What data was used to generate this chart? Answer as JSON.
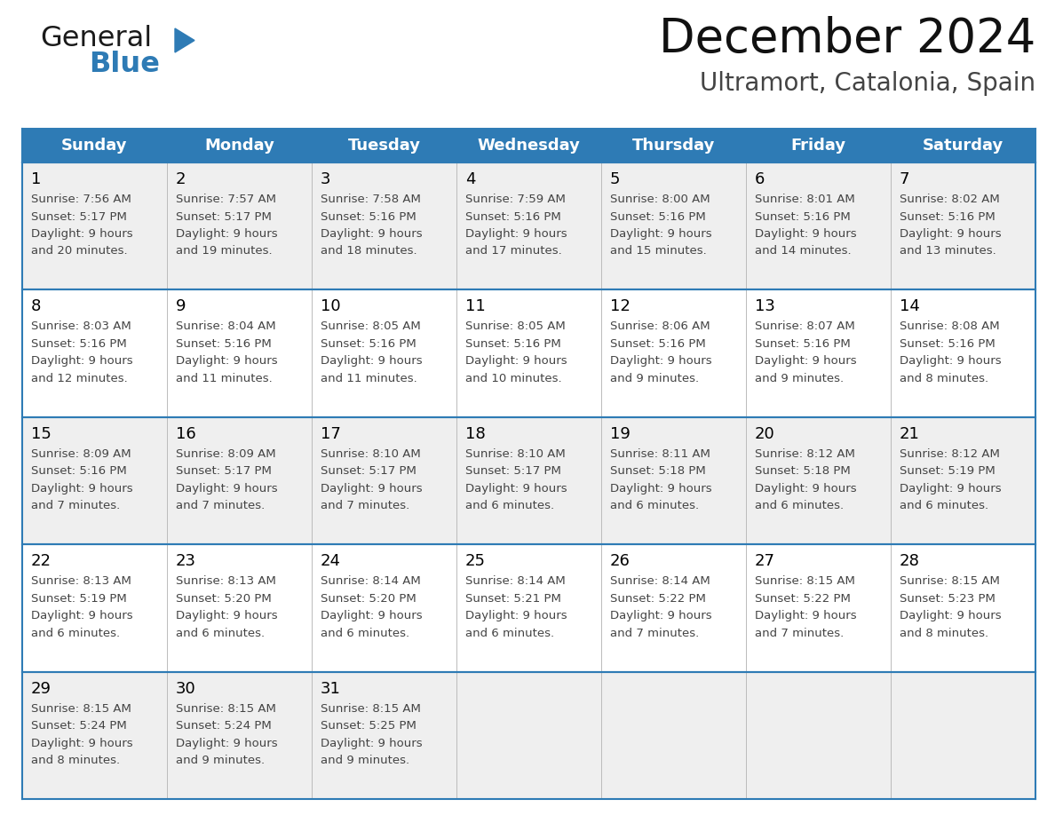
{
  "title": "December 2024",
  "subtitle": "Ultramort, Catalonia, Spain",
  "days_of_week": [
    "Sunday",
    "Monday",
    "Tuesday",
    "Wednesday",
    "Thursday",
    "Friday",
    "Saturday"
  ],
  "header_bg": "#2E7BB5",
  "header_text": "#FFFFFF",
  "row_bg_odd": "#EFEFEF",
  "row_bg_even": "#FFFFFF",
  "cell_border": "#2E7BB5",
  "day_number_color": "#000000",
  "cell_text_color": "#444444",
  "calendar_data": [
    [
      {
        "day": 1,
        "sunrise": "7:56 AM",
        "sunset": "5:17 PM",
        "daylight": "9 hours and 20 minutes."
      },
      {
        "day": 2,
        "sunrise": "7:57 AM",
        "sunset": "5:17 PM",
        "daylight": "9 hours and 19 minutes."
      },
      {
        "day": 3,
        "sunrise": "7:58 AM",
        "sunset": "5:16 PM",
        "daylight": "9 hours and 18 minutes."
      },
      {
        "day": 4,
        "sunrise": "7:59 AM",
        "sunset": "5:16 PM",
        "daylight": "9 hours and 17 minutes."
      },
      {
        "day": 5,
        "sunrise": "8:00 AM",
        "sunset": "5:16 PM",
        "daylight": "9 hours and 15 minutes."
      },
      {
        "day": 6,
        "sunrise": "8:01 AM",
        "sunset": "5:16 PM",
        "daylight": "9 hours and 14 minutes."
      },
      {
        "day": 7,
        "sunrise": "8:02 AM",
        "sunset": "5:16 PM",
        "daylight": "9 hours and 13 minutes."
      }
    ],
    [
      {
        "day": 8,
        "sunrise": "8:03 AM",
        "sunset": "5:16 PM",
        "daylight": "9 hours and 12 minutes."
      },
      {
        "day": 9,
        "sunrise": "8:04 AM",
        "sunset": "5:16 PM",
        "daylight": "9 hours and 11 minutes."
      },
      {
        "day": 10,
        "sunrise": "8:05 AM",
        "sunset": "5:16 PM",
        "daylight": "9 hours and 11 minutes."
      },
      {
        "day": 11,
        "sunrise": "8:05 AM",
        "sunset": "5:16 PM",
        "daylight": "9 hours and 10 minutes."
      },
      {
        "day": 12,
        "sunrise": "8:06 AM",
        "sunset": "5:16 PM",
        "daylight": "9 hours and 9 minutes."
      },
      {
        "day": 13,
        "sunrise": "8:07 AM",
        "sunset": "5:16 PM",
        "daylight": "9 hours and 9 minutes."
      },
      {
        "day": 14,
        "sunrise": "8:08 AM",
        "sunset": "5:16 PM",
        "daylight": "9 hours and 8 minutes."
      }
    ],
    [
      {
        "day": 15,
        "sunrise": "8:09 AM",
        "sunset": "5:16 PM",
        "daylight": "9 hours and 7 minutes."
      },
      {
        "day": 16,
        "sunrise": "8:09 AM",
        "sunset": "5:17 PM",
        "daylight": "9 hours and 7 minutes."
      },
      {
        "day": 17,
        "sunrise": "8:10 AM",
        "sunset": "5:17 PM",
        "daylight": "9 hours and 7 minutes."
      },
      {
        "day": 18,
        "sunrise": "8:10 AM",
        "sunset": "5:17 PM",
        "daylight": "9 hours and 6 minutes."
      },
      {
        "day": 19,
        "sunrise": "8:11 AM",
        "sunset": "5:18 PM",
        "daylight": "9 hours and 6 minutes."
      },
      {
        "day": 20,
        "sunrise": "8:12 AM",
        "sunset": "5:18 PM",
        "daylight": "9 hours and 6 minutes."
      },
      {
        "day": 21,
        "sunrise": "8:12 AM",
        "sunset": "5:19 PM",
        "daylight": "9 hours and 6 minutes."
      }
    ],
    [
      {
        "day": 22,
        "sunrise": "8:13 AM",
        "sunset": "5:19 PM",
        "daylight": "9 hours and 6 minutes."
      },
      {
        "day": 23,
        "sunrise": "8:13 AM",
        "sunset": "5:20 PM",
        "daylight": "9 hours and 6 minutes."
      },
      {
        "day": 24,
        "sunrise": "8:14 AM",
        "sunset": "5:20 PM",
        "daylight": "9 hours and 6 minutes."
      },
      {
        "day": 25,
        "sunrise": "8:14 AM",
        "sunset": "5:21 PM",
        "daylight": "9 hours and 6 minutes."
      },
      {
        "day": 26,
        "sunrise": "8:14 AM",
        "sunset": "5:22 PM",
        "daylight": "9 hours and 7 minutes."
      },
      {
        "day": 27,
        "sunrise": "8:15 AM",
        "sunset": "5:22 PM",
        "daylight": "9 hours and 7 minutes."
      },
      {
        "day": 28,
        "sunrise": "8:15 AM",
        "sunset": "5:23 PM",
        "daylight": "9 hours and 8 minutes."
      }
    ],
    [
      {
        "day": 29,
        "sunrise": "8:15 AM",
        "sunset": "5:24 PM",
        "daylight": "9 hours and 8 minutes."
      },
      {
        "day": 30,
        "sunrise": "8:15 AM",
        "sunset": "5:24 PM",
        "daylight": "9 hours and 9 minutes."
      },
      {
        "day": 31,
        "sunrise": "8:15 AM",
        "sunset": "5:25 PM",
        "daylight": "9 hours and 9 minutes."
      },
      null,
      null,
      null,
      null
    ]
  ],
  "logo_general_color": "#1a1a1a",
  "logo_blue_color": "#2E7BB5",
  "fig_width": 11.88,
  "fig_height": 9.18,
  "title_fontsize": 38,
  "subtitle_fontsize": 20,
  "header_fontsize": 13,
  "day_number_fontsize": 13,
  "cell_text_fontsize": 9.5
}
